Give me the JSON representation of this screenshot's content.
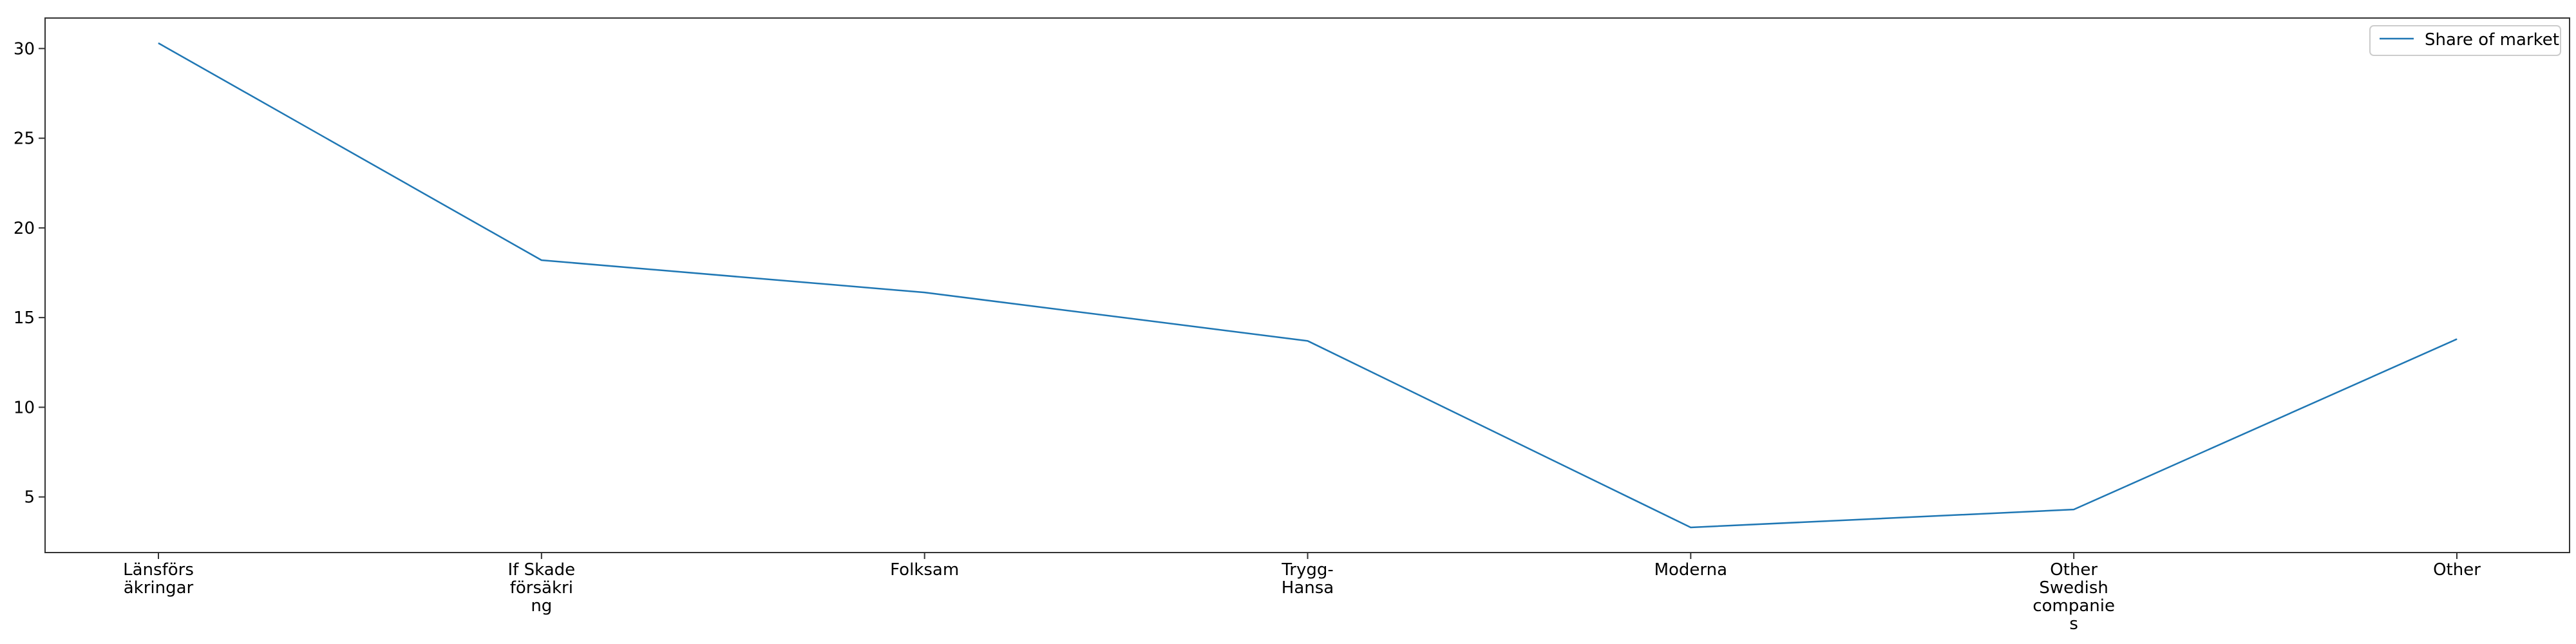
{
  "chart_data": {
    "type": "line",
    "categories": [
      [
        "Länsförs",
        "äkringar"
      ],
      [
        "If Skade",
        "försäkri",
        "ng"
      ],
      [
        "Folksam"
      ],
      [
        "Trygg-",
        "Hansa"
      ],
      [
        "Moderna"
      ],
      [
        "Other",
        "Swedish",
        "companie",
        "s"
      ],
      [
        "Other"
      ]
    ],
    "series": [
      {
        "name": "Share of market",
        "values": [
          30.3,
          18.2,
          16.4,
          13.7,
          3.3,
          4.3,
          13.8
        ],
        "color": "#1f77b4"
      }
    ],
    "yticks": [
      5,
      10,
      15,
      20,
      25,
      30
    ],
    "ylim": [
      1.9,
      31.7
    ],
    "title": "",
    "xlabel": "",
    "ylabel": "",
    "grid": false,
    "legend_position": "top-right"
  }
}
